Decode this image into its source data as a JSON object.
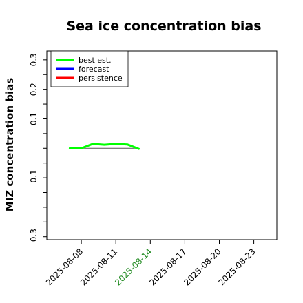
{
  "chart_data": {
    "type": "line",
    "title": "Sea ice concentration bias",
    "xlabel": "",
    "ylabel": "MIZ concentration bias",
    "xlim": [
      "2025-08-05",
      "2025-08-25"
    ],
    "ylim": [
      -0.31,
      0.33
    ],
    "x_ticks": [
      "2025-08-08",
      "2025-08-11",
      "2025-08-14",
      "2025-08-17",
      "2025-08-20",
      "2025-08-23"
    ],
    "x_tick_colors": [
      "#000000",
      "#000000",
      "#228b22",
      "#000000",
      "#000000",
      "#000000"
    ],
    "y_ticks": [
      {
        "value": 0.3,
        "label": "0.3"
      },
      {
        "value": 0.25,
        "label": ""
      },
      {
        "value": 0.2,
        "label": "0.2"
      },
      {
        "value": 0.15,
        "label": ""
      },
      {
        "value": 0.1,
        "label": "0.1"
      },
      {
        "value": 0.05,
        "label": ""
      },
      {
        "value": 0.0,
        "label": ""
      },
      {
        "value": -0.05,
        "label": ""
      },
      {
        "value": -0.1,
        "label": "-0.1"
      },
      {
        "value": -0.15,
        "label": ""
      },
      {
        "value": -0.2,
        "label": ""
      },
      {
        "value": -0.25,
        "label": ""
      },
      {
        "value": -0.3,
        "label": "-0.3"
      }
    ],
    "zero_line": {
      "x": [
        "2025-08-07",
        "2025-08-13"
      ],
      "y": 0,
      "color": "#555555"
    },
    "series": [
      {
        "name": "best est.",
        "color": "#00ff00",
        "x": [
          "2025-08-07",
          "2025-08-08",
          "2025-08-09",
          "2025-08-10",
          "2025-08-11",
          "2025-08-12",
          "2025-08-13"
        ],
        "values": [
          0.0,
          0.0,
          0.015,
          0.012,
          0.015,
          0.013,
          -0.002
        ]
      },
      {
        "name": "forecast",
        "color": "#0000ff",
        "x": [],
        "values": []
      },
      {
        "name": "persistence",
        "color": "#ff0000",
        "x": [],
        "values": []
      }
    ],
    "legend_position": "top-left"
  }
}
